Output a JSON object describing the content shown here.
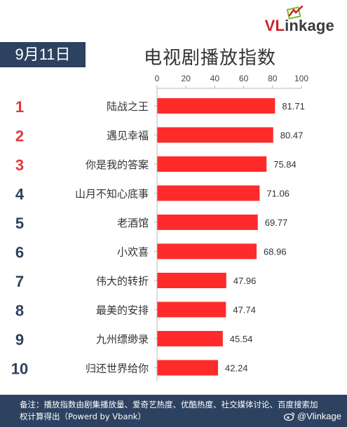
{
  "brand": {
    "logo_text": "VLinkage",
    "logo_prefix": "VL",
    "logo_suffix": "inkage"
  },
  "date_label": "9月11日",
  "title": "电视剧播放指数",
  "colors": {
    "bar": "#ff2a2a",
    "rank_top": "#e5373a",
    "rank_other": "#2d4160",
    "badge": "#2d4160",
    "axis": "#b9b9b9"
  },
  "chart_data": {
    "type": "bar",
    "orientation": "horizontal",
    "title": "电视剧播放指数",
    "xlim": [
      0,
      100
    ],
    "x_ticks": [
      "0",
      "20",
      "40",
      "60",
      "80",
      "100"
    ],
    "categories": [
      "陆战之王",
      "遇见幸福",
      "你是我的答案",
      "山月不知心底事",
      "老酒馆",
      "小欢喜",
      "伟大的转折",
      "最美的安排",
      "九州缥缈录",
      "归还世界给你"
    ],
    "ranks": [
      "1",
      "2",
      "3",
      "4",
      "5",
      "6",
      "7",
      "8",
      "9",
      "10"
    ],
    "values": [
      81.71,
      80.47,
      75.84,
      71.06,
      69.77,
      68.96,
      47.96,
      47.74,
      45.54,
      42.24
    ],
    "value_labels": [
      "81.71",
      "80.47",
      "75.84",
      "71.06",
      "69.77",
      "68.96",
      "47.96",
      "47.74",
      "45.54",
      "42.24"
    ],
    "grid": false
  },
  "footer": {
    "note": "备注：播放指数由剧集播放量、爱奇艺热度、优酷热度、社交媒体讨论、百度搜索加权计算得出（Powerd by Vbank）",
    "weibo_handle": "@Vlinkage"
  }
}
